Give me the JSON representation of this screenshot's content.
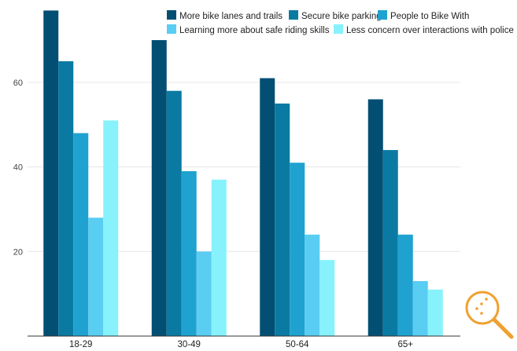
{
  "chart_data": {
    "type": "bar",
    "title": "",
    "xlabel": "",
    "ylabel": "",
    "ylim": [
      0,
      78
    ],
    "yticks": [
      20,
      40,
      60
    ],
    "grid": true,
    "legend_position": "top-right",
    "categories": [
      "18-29",
      "30-49",
      "50-64",
      "65+"
    ],
    "series": [
      {
        "name": "More bike lanes and trails",
        "color": "#034f73",
        "values": [
          77,
          70,
          61,
          56
        ]
      },
      {
        "name": "Secure bike parking",
        "color": "#0a7aa3",
        "values": [
          65,
          58,
          55,
          44
        ]
      },
      {
        "name": "People to Bike With",
        "color": "#1fa2cf",
        "values": [
          48,
          39,
          41,
          24
        ]
      },
      {
        "name": "Learning more about safe riding skills",
        "color": "#59cdf2",
        "values": [
          28,
          20,
          24,
          13
        ]
      },
      {
        "name": "Less concern over interactions with police",
        "color": "#87f2fc",
        "values": [
          51,
          37,
          18,
          11
        ]
      }
    ]
  },
  "zoom_icon": {
    "name": "zoom-magnifier-icon",
    "color": "#f0a030"
  }
}
